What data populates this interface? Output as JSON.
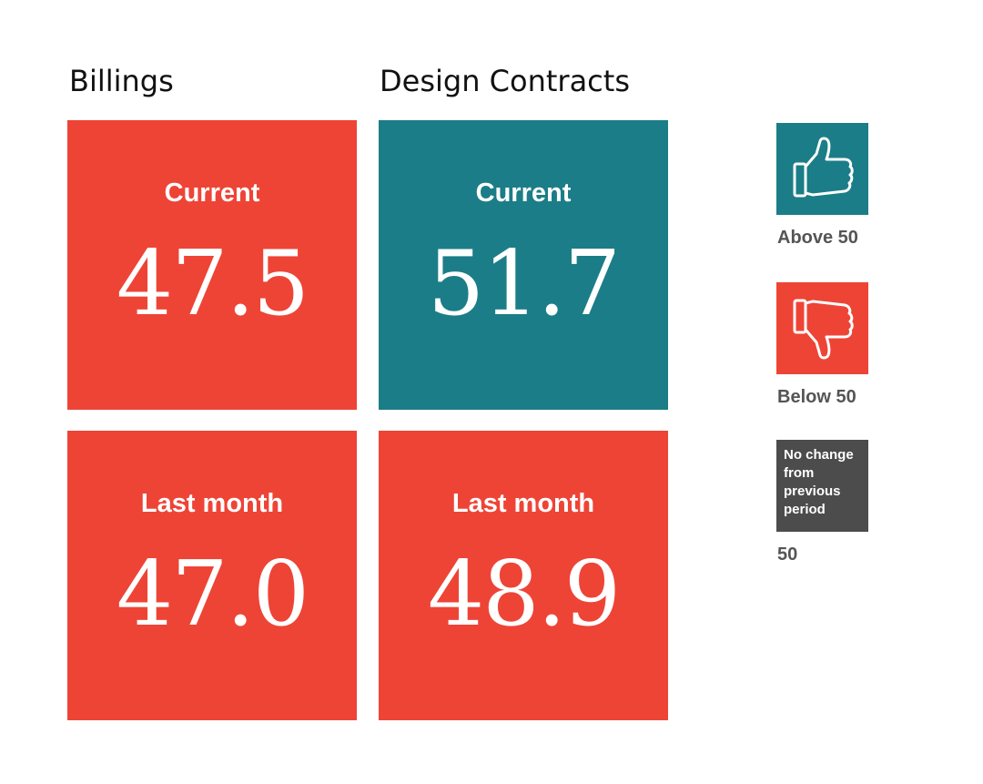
{
  "colors": {
    "above": "#1b7d87",
    "below": "#ee4436",
    "no_change": "#4c4c4c",
    "text_on_tile": "#ffffff"
  },
  "chart_data": {
    "type": "table",
    "columns": [
      {
        "name": "Billings",
        "current_label": "Current",
        "current": 47.5,
        "current_status": "below",
        "last_label": "Last month",
        "last": 47.0,
        "last_status": "below"
      },
      {
        "name": "Design Contracts",
        "current_label": "Current",
        "current": 51.7,
        "current_status": "above",
        "last_label": "Last month",
        "last": 48.9,
        "last_status": "below"
      }
    ],
    "legend": [
      {
        "key": "above",
        "label": "Above 50",
        "icon": "thumbs-up-icon"
      },
      {
        "key": "below",
        "label": "Below 50",
        "icon": "thumbs-down-icon"
      },
      {
        "key": "no_change",
        "swatch_text": "No change from previous period",
        "label": "50"
      }
    ]
  }
}
